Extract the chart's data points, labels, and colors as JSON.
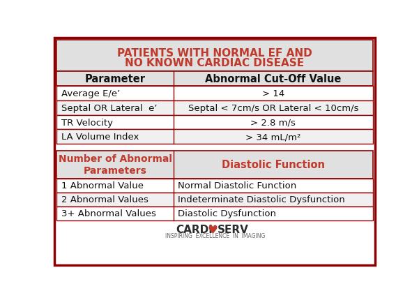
{
  "title_line1": "PATIENTS WITH NORMAL EF AND",
  "title_line2": "NO KNOWN CARDIAC DISEASE",
  "title_color": "#c0392b",
  "header_bg": "#e0e0e0",
  "row_bg_alt": "#f0f0f0",
  "row_bg": "#ffffff",
  "border_color": "#8b0000",
  "table1_headers": [
    "Parameter",
    "Abnormal Cut-Off Value"
  ],
  "table1_rows": [
    [
      "Average E/e’",
      "> 14"
    ],
    [
      "Septal OR Lateral  e’",
      "Septal < 7cm/s OR Lateral < 10cm/s"
    ],
    [
      "TR Velocity",
      "> 2.8 m/s"
    ],
    [
      "LA Volume Index",
      "> 34 mL/m²"
    ]
  ],
  "table2_header_left": "Number of Abnormal\nParameters",
  "table2_header_right": "Diastolic Function",
  "table2_header_color": "#c0392b",
  "table2_rows": [
    [
      "1 Abnormal Value",
      "Normal Diastolic Function"
    ],
    [
      "2 Abnormal Values",
      "Indeterminate Diastolic Dysfunction"
    ],
    [
      "3+ Abnormal Values",
      "Diastolic Dysfunction"
    ]
  ],
  "logo_left": "CARDI",
  "logo_heart": "♥",
  "logo_right": "SERV",
  "logo_subtitle": "INSPIRING  EXCELLENCE  IN  IMAGING",
  "logo_color": "#2c2c2c",
  "logo_heart_color": "#c0392b",
  "bg_color": "#ffffff",
  "outer_border_color": "#8b0000"
}
